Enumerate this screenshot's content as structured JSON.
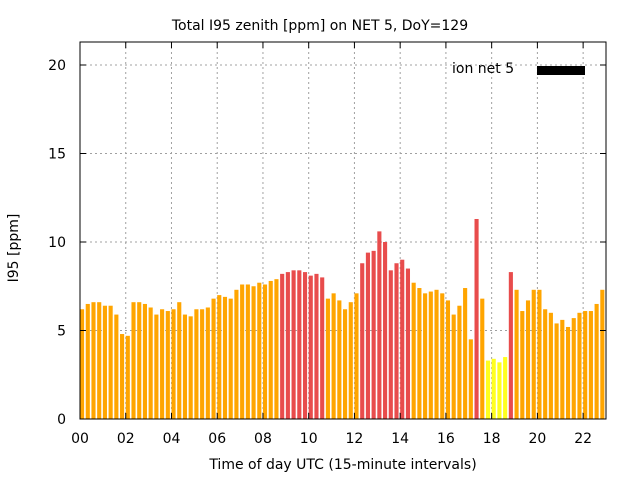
{
  "chart_data": {
    "type": "bar",
    "title": "Total I95 zenith [ppm] on NET 5, DoY=129",
    "xlabel": "Time of day UTC (15-minute intervals)",
    "ylabel": "I95 [ppm]",
    "xlim": [
      0,
      23
    ],
    "ylim": [
      0,
      21.3
    ],
    "xticks": [
      0,
      2,
      4,
      6,
      8,
      10,
      12,
      14,
      16,
      18,
      20,
      22
    ],
    "xtick_labels": [
      "00",
      "02",
      "04",
      "06",
      "08",
      "10",
      "12",
      "14",
      "16",
      "18",
      "20",
      "22"
    ],
    "yticks": [
      0,
      5,
      10,
      15,
      20
    ],
    "ytick_labels": [
      "0",
      "5",
      "10",
      "15",
      "20"
    ],
    "grid": true,
    "legend": {
      "label": "ion net 5",
      "position": "top-right",
      "color": "#000000"
    },
    "colors": {
      "low": "#ffff1e",
      "medium": "#ffa500",
      "high": "#e84c4c"
    },
    "x": [
      0.0,
      0.25,
      0.5,
      0.75,
      1.0,
      1.25,
      1.5,
      1.75,
      2.0,
      2.25,
      2.5,
      2.75,
      3.0,
      3.25,
      3.5,
      3.75,
      4.0,
      4.25,
      4.5,
      4.75,
      5.0,
      5.25,
      5.5,
      5.75,
      6.0,
      6.25,
      6.5,
      6.75,
      7.0,
      7.25,
      7.5,
      7.75,
      8.0,
      8.25,
      8.5,
      8.75,
      9.0,
      9.25,
      9.5,
      9.75,
      10.0,
      10.25,
      10.5,
      10.75,
      11.0,
      11.25,
      11.5,
      11.75,
      12.0,
      12.25,
      12.5,
      12.75,
      13.0,
      13.25,
      13.5,
      13.75,
      14.0,
      14.25,
      14.5,
      14.75,
      15.0,
      15.25,
      15.5,
      15.75,
      16.0,
      16.25,
      16.5,
      16.75,
      17.0,
      17.25,
      17.5,
      17.75,
      18.0,
      18.25,
      18.5,
      18.75,
      19.0,
      19.25,
      19.5,
      19.75,
      20.0,
      20.25,
      20.5,
      20.75,
      21.0,
      21.25,
      21.5,
      21.75,
      22.0,
      22.25,
      22.5,
      22.75
    ],
    "values": [
      6.2,
      6.5,
      6.6,
      6.6,
      6.4,
      6.4,
      5.9,
      4.8,
      4.7,
      6.6,
      6.6,
      6.5,
      6.3,
      5.9,
      6.2,
      6.1,
      6.2,
      6.6,
      5.9,
      5.8,
      6.2,
      6.2,
      6.3,
      6.8,
      7.0,
      6.9,
      6.8,
      7.3,
      7.6,
      7.6,
      7.5,
      7.7,
      7.6,
      7.8,
      7.9,
      8.2,
      8.3,
      8.4,
      8.4,
      8.3,
      8.1,
      8.2,
      8.0,
      6.8,
      7.1,
      6.7,
      6.2,
      6.6,
      7.1,
      8.8,
      9.4,
      9.5,
      10.6,
      10.0,
      8.4,
      8.8,
      9.0,
      8.5,
      7.7,
      7.4,
      7.1,
      7.2,
      7.3,
      7.1,
      6.7,
      5.9,
      6.4,
      7.4,
      4.5,
      11.3,
      6.8,
      3.3,
      3.4,
      3.2,
      3.5,
      8.3,
      7.3,
      6.1,
      6.7,
      7.3,
      7.3,
      6.2,
      6.0,
      5.4,
      5.6,
      5.2,
      5.7,
      6.0,
      6.1,
      6.1,
      6.5,
      7.3
    ],
    "levels": [
      "medium",
      "medium",
      "medium",
      "medium",
      "medium",
      "medium",
      "medium",
      "medium",
      "medium",
      "medium",
      "medium",
      "medium",
      "medium",
      "medium",
      "medium",
      "medium",
      "medium",
      "medium",
      "medium",
      "medium",
      "medium",
      "medium",
      "medium",
      "medium",
      "medium",
      "medium",
      "medium",
      "medium",
      "medium",
      "medium",
      "medium",
      "medium",
      "medium",
      "medium",
      "medium",
      "high",
      "high",
      "high",
      "high",
      "high",
      "high",
      "high",
      "high",
      "medium",
      "medium",
      "medium",
      "medium",
      "medium",
      "medium",
      "high",
      "high",
      "high",
      "high",
      "high",
      "high",
      "high",
      "high",
      "high",
      "medium",
      "medium",
      "medium",
      "medium",
      "medium",
      "medium",
      "medium",
      "medium",
      "medium",
      "medium",
      "medium",
      "high",
      "medium",
      "low",
      "low",
      "low",
      "low",
      "high",
      "medium",
      "medium",
      "medium",
      "medium",
      "medium",
      "medium",
      "medium",
      "medium",
      "medium",
      "medium",
      "medium",
      "medium",
      "medium",
      "medium",
      "medium",
      "medium"
    ]
  }
}
